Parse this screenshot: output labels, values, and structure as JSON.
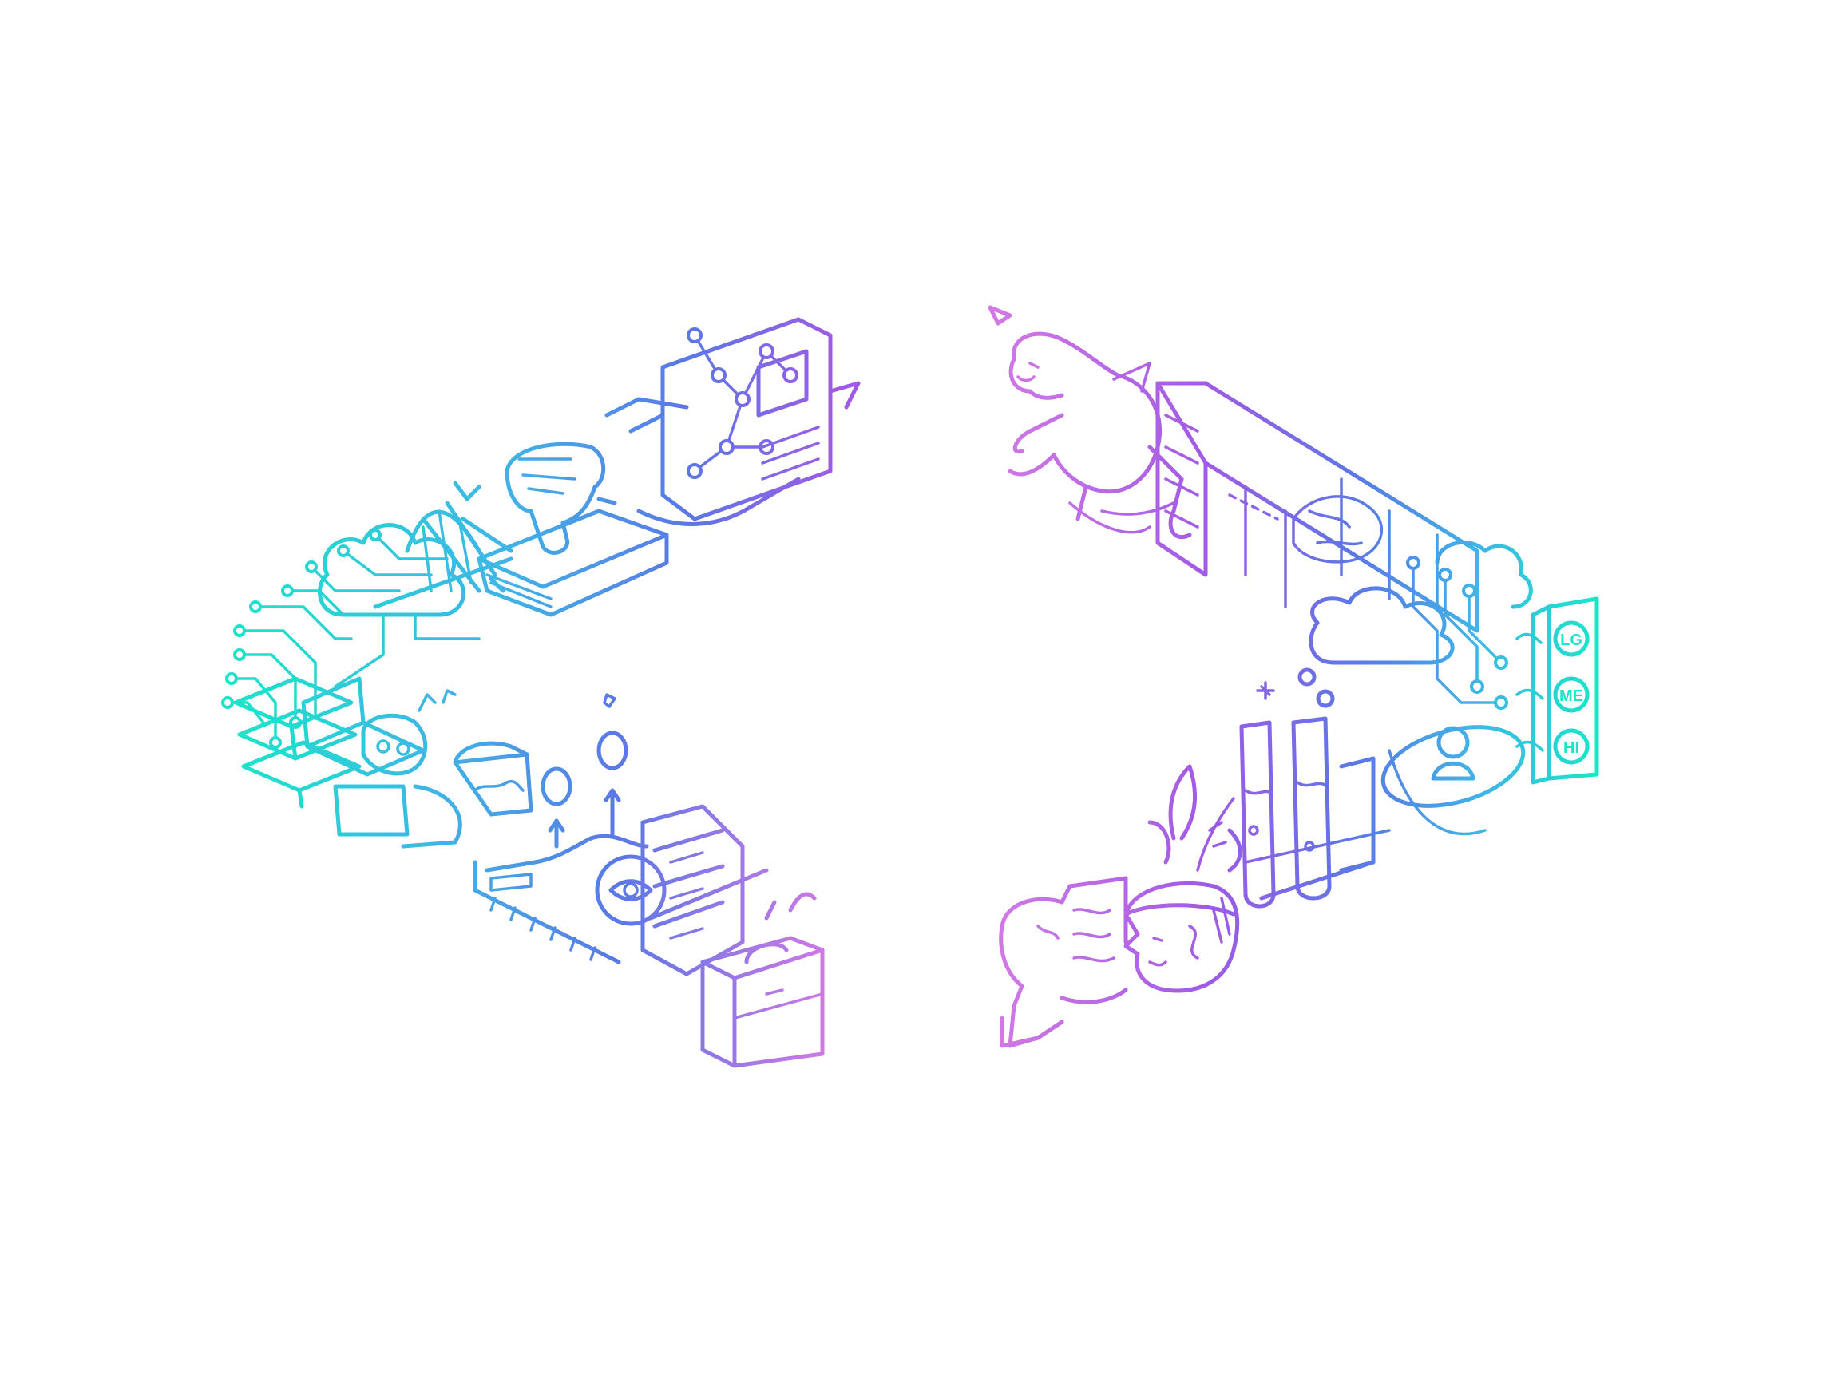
{
  "colors": {
    "background": "#ffffff",
    "teal": "#19e6c8",
    "cyan": "#3fb5e6",
    "blue": "#5a78e6",
    "purple": "#a05ae6",
    "pink": "#d278e6"
  },
  "icons": {
    "left_bracket": [
      "circuit-icon",
      "cloud-icon",
      "bridge-icon",
      "hand-pointer-icon",
      "book-icon",
      "network-graph-icon",
      "document-icon",
      "laptop-icon",
      "person-icon",
      "pie-icon",
      "coin-icon",
      "chart-line-icon",
      "eye-icon",
      "drawer-icon",
      "briefcase-icon"
    ],
    "right_bracket": [
      "bear-icon",
      "building-icon",
      "globe-icon",
      "cloud-icon",
      "circuit-icon",
      "speech-bubble-icon",
      "test-tube-icon",
      "plant-icon",
      "head-icon",
      "person-icon"
    ]
  },
  "labels": {
    "bubble_top": "LG",
    "bubble_middle": "ME",
    "bubble_bottom": "HI"
  }
}
